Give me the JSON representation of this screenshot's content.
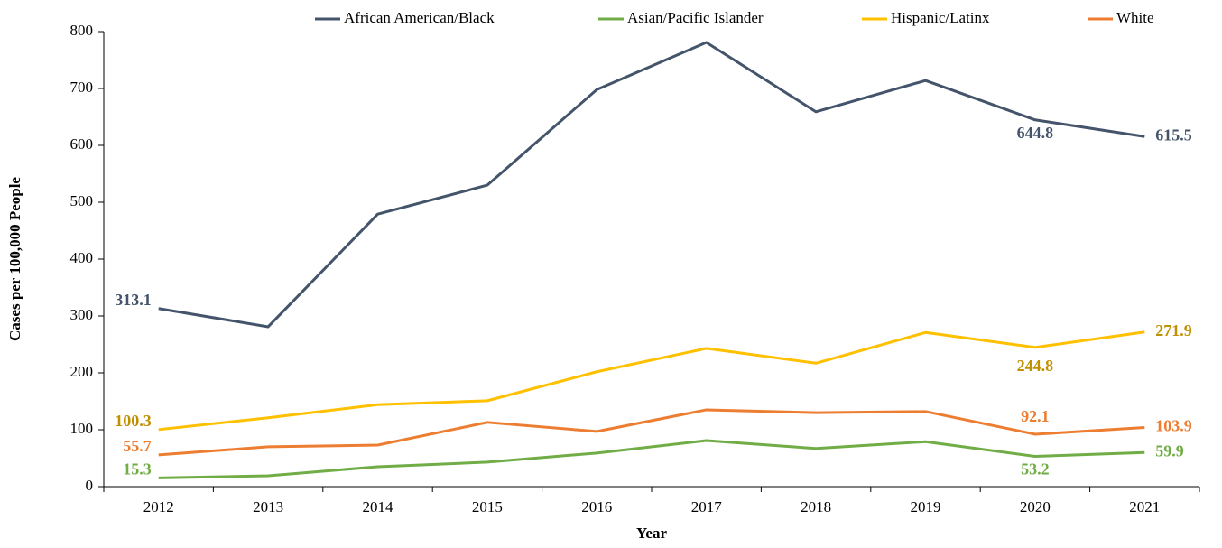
{
  "chart_data": {
    "type": "line",
    "x_label": "Year",
    "y_label": "Cases per 100,000 People",
    "categories": [
      "2012",
      "2013",
      "2014",
      "2015",
      "2016",
      "2017",
      "2018",
      "2019",
      "2020",
      "2021"
    ],
    "series": [
      {
        "name": "African American/Black",
        "color": "#44546a",
        "label_color": "#44546a",
        "values": [
          313.1,
          281,
          479,
          530,
          698,
          781,
          659,
          714,
          644.8,
          615.5
        ],
        "value_labels": [
          "313.1",
          null,
          null,
          null,
          null,
          null,
          null,
          null,
          "644.8",
          "615.5"
        ]
      },
      {
        "name": "Asian/Pacific Islander",
        "color": "#70ad47",
        "label_color": "#70ad47",
        "values": [
          15.3,
          19,
          35,
          43,
          59,
          81,
          67,
          79,
          53.2,
          59.9
        ],
        "value_labels": [
          "15.3",
          null,
          null,
          null,
          null,
          null,
          null,
          null,
          "53.2",
          "59.9"
        ]
      },
      {
        "name": "Hispanic/Latinx",
        "color": "#ffc000",
        "label_color": "#bf9000",
        "values": [
          100.3,
          121,
          144,
          151,
          202,
          243,
          217,
          271,
          244.8,
          271.9
        ],
        "value_labels": [
          "100.3",
          null,
          null,
          null,
          null,
          null,
          null,
          null,
          "244.8",
          "271.9"
        ]
      },
      {
        "name": "White",
        "color": "#ed7d31",
        "label_color": "#ed7d31",
        "values": [
          55.7,
          70,
          73,
          113,
          97,
          135,
          130,
          132,
          92.1,
          103.9
        ],
        "value_labels": [
          "55.7",
          null,
          null,
          null,
          null,
          null,
          null,
          null,
          "92.1",
          "103.9"
        ]
      }
    ],
    "ylim": [
      0,
      800
    ],
    "yticks": [
      0,
      100,
      200,
      300,
      400,
      500,
      600,
      700,
      800
    ],
    "grid": false,
    "legend": "top"
  }
}
